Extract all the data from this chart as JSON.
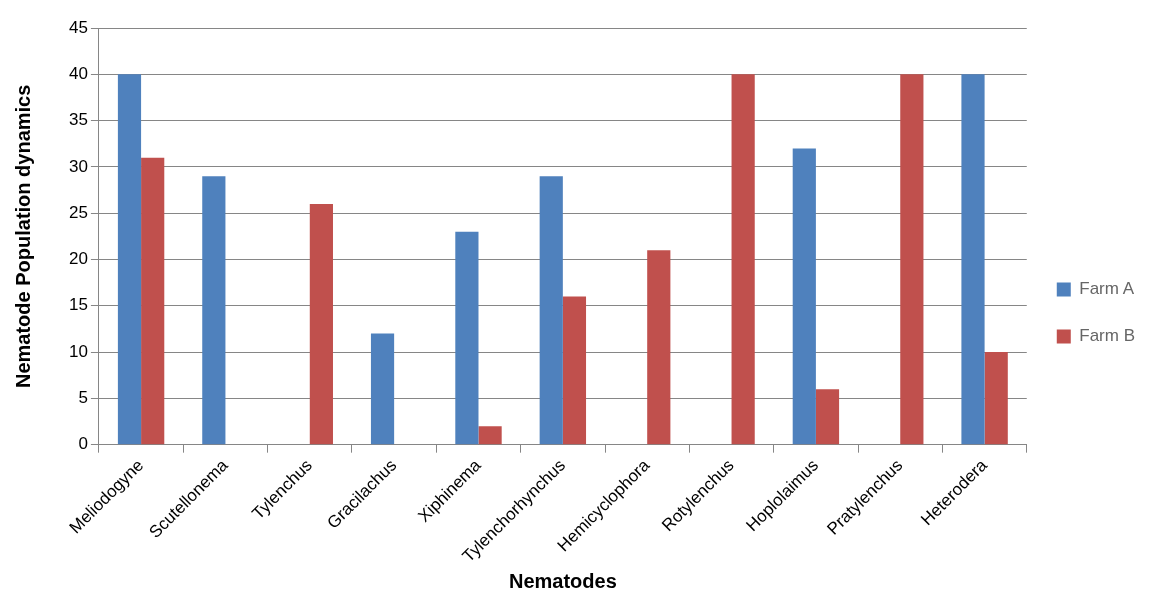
{
  "chart_data": {
    "type": "bar",
    "xlabel": "Nematodes",
    "ylabel": "Nematode Population dynamics",
    "categories": [
      "Meliodogyne",
      "Scutellonema",
      "Tylenchus",
      "Gracilachus",
      "Xiphinema",
      "Tylenchorhynchus",
      "Hemicyclophora",
      "Rotylenchus",
      "Hoplolaimus",
      "Pratylenchus",
      "Heterodera"
    ],
    "series": [
      {
        "name": "Farm A",
        "color": "#4f81bd",
        "values": [
          40,
          29,
          0,
          12,
          23,
          29,
          0,
          0,
          32,
          0,
          40
        ]
      },
      {
        "name": "Farm B",
        "color": "#c0504d",
        "values": [
          31,
          0,
          26,
          0,
          2,
          16,
          21,
          40,
          6,
          40,
          10
        ]
      }
    ],
    "ylim": [
      0,
      45
    ],
    "yticks": [
      0,
      5,
      10,
      15,
      20,
      25,
      30,
      35,
      40,
      45
    ],
    "grid": "y",
    "legend": "right"
  }
}
